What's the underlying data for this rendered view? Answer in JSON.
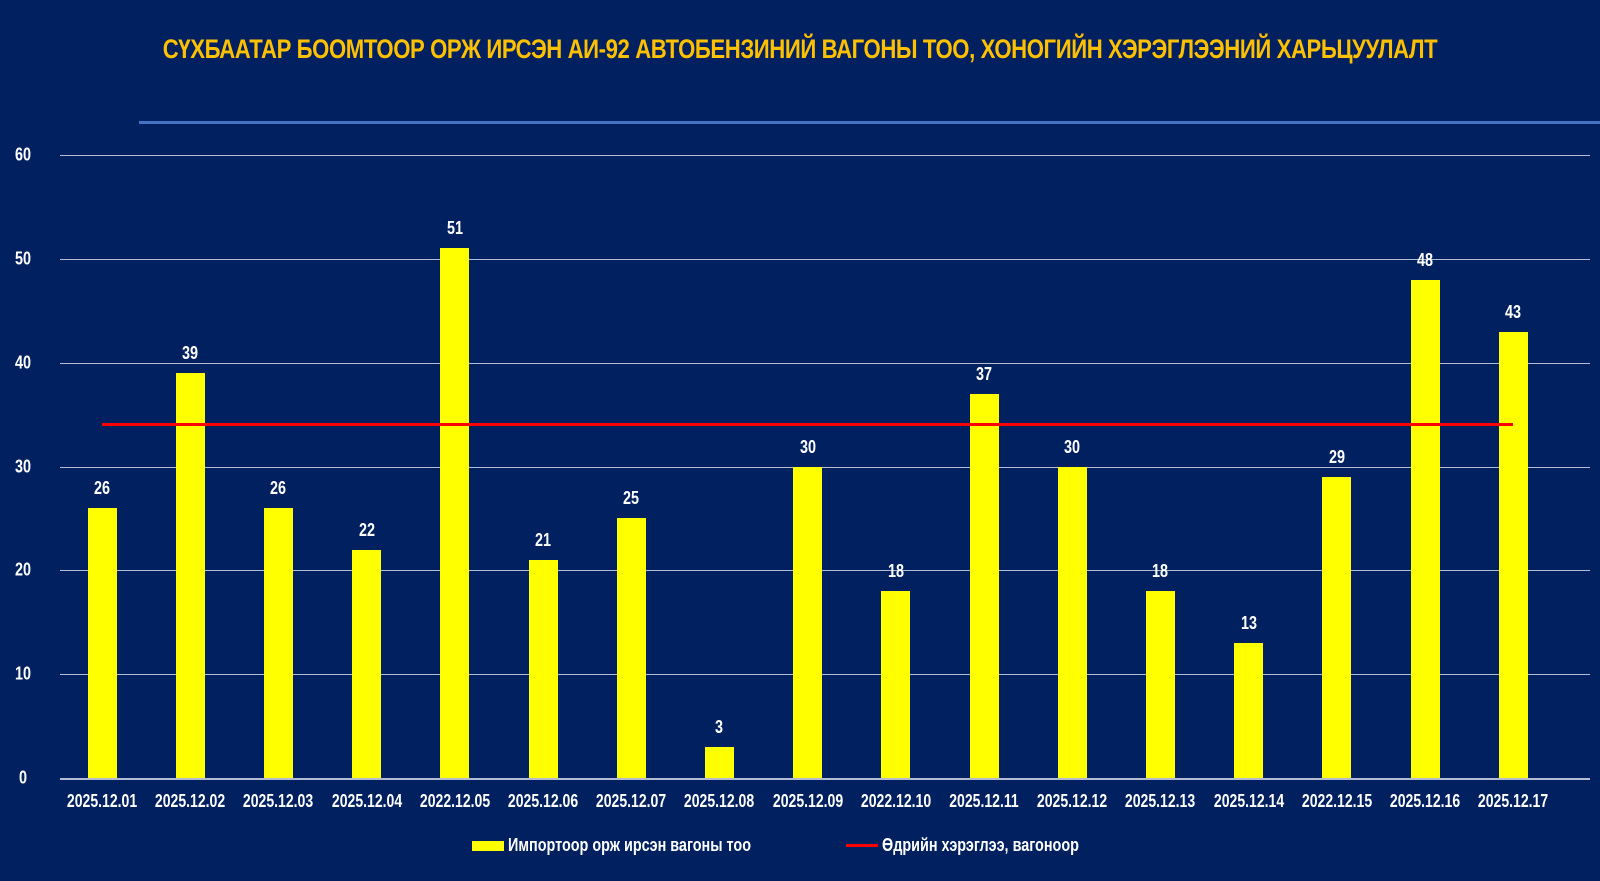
{
  "title": "СҮХБААТАР БООМТООР ОРЖ ИРСЭН АИ-92 АВТОБЕНЗИНИЙ ВАГОНЫ ТОО, ХОНОГИЙН ХЭРЭГЛЭЭНИЙ ХАРЬЦУУЛАЛТ",
  "colors": {
    "background": "#002060",
    "bar": "#FFFF00",
    "reference_line": "#FF0000",
    "title": "#FFC000",
    "top_rule": "#4472C4"
  },
  "legend": {
    "bar_label": "Импортоор орж ирсэн вагоны тоо",
    "line_label": "Өдрийн хэрэглээ, вагоноор"
  },
  "chart_data": {
    "type": "bar",
    "title": "СҮХБААТАР БООМТООР ОРЖ ИРСЭН АИ-92 АВТОБЕНЗИНИЙ ВАГОНЫ ТОО, ХОНОГИЙН ХЭРЭГЛЭЭНИЙ ХАРЬЦУУЛАЛТ",
    "xlabel": "",
    "ylabel": "",
    "ylim": [
      0,
      60
    ],
    "yticks": [
      0,
      10,
      20,
      30,
      40,
      50,
      60
    ],
    "grid": true,
    "legend_position": "bottom",
    "categories": [
      "2025.12.01",
      "2025.12.02",
      "2025.12.03",
      "2025.12.04",
      "2022.12.05",
      "2025.12.06",
      "2025.12.07",
      "2025.12.08",
      "2025.12.09",
      "2022.12.10",
      "2025.12.11",
      "2025.12.12",
      "2025.12.13",
      "2025.12.14",
      "2022.12.15",
      "2025.12.16",
      "2025.12.17"
    ],
    "series": [
      {
        "name": "Импортоор орж ирсэн вагоны тоо",
        "type": "bar",
        "values": [
          26,
          39,
          26,
          22,
          51,
          21,
          25,
          3,
          30,
          18,
          37,
          30,
          18,
          13,
          29,
          48,
          43
        ]
      },
      {
        "name": "Өдрийн хэрэглээ, вагоноор",
        "type": "line",
        "values": [
          34,
          34,
          34,
          34,
          34,
          34,
          34,
          34,
          34,
          34,
          34,
          34,
          34,
          34,
          34,
          34,
          34
        ]
      }
    ]
  }
}
